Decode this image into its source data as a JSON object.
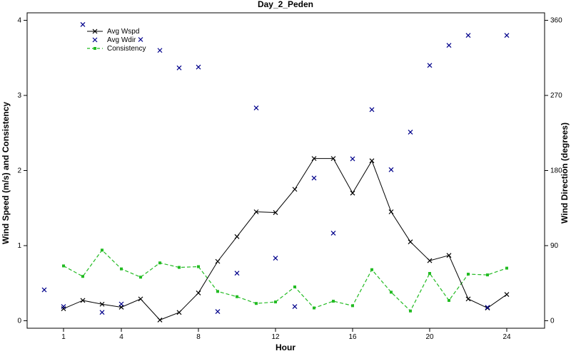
{
  "chart_data": {
    "type": "line",
    "title": "Day_2_Peden",
    "xlabel": "Hour",
    "ylabel": "Wind Speed (m/s) and Consistency",
    "ylabel_right": "Wind Direction (degrees)",
    "xlim": [
      0,
      25
    ],
    "ylim": [
      -0.1,
      4.1
    ],
    "ylim_right": [
      -9,
      369
    ],
    "x_ticks": [
      1,
      4,
      8,
      12,
      16,
      20,
      24
    ],
    "y_ticks": [
      0,
      1,
      2,
      3,
      4
    ],
    "y_ticks_right": [
      0,
      90,
      180,
      270,
      360
    ],
    "grid": false,
    "legend_position": "top-left",
    "series": [
      {
        "name": "Avg Wspd",
        "axis": "left",
        "style": "solid line with x markers",
        "color": "#000000",
        "x": [
          1,
          2,
          3,
          4,
          5,
          6,
          7,
          8,
          9,
          10,
          11,
          12,
          13,
          14,
          15,
          16,
          17,
          18,
          19,
          20,
          21,
          22,
          23,
          24
        ],
        "values": [
          0.16,
          0.27,
          0.22,
          0.18,
          0.29,
          0.01,
          0.11,
          0.37,
          0.79,
          1.12,
          1.45,
          1.44,
          1.75,
          2.16,
          2.16,
          1.7,
          2.13,
          1.45,
          1.05,
          0.8,
          0.87,
          0.29,
          0.17,
          0.35
        ]
      },
      {
        "name": "Avg Wdir",
        "axis": "right",
        "style": "x markers only",
        "color": "#00008b",
        "x": [
          0,
          1,
          2,
          3,
          4,
          5,
          6,
          7,
          8,
          9,
          10,
          11,
          12,
          13,
          14,
          15,
          16,
          17,
          18,
          19,
          20,
          21,
          22,
          23,
          24
        ],
        "values": [
          37,
          17,
          355,
          10,
          20,
          337,
          324,
          303,
          304,
          11,
          57,
          255,
          75,
          17,
          171,
          105,
          194,
          253,
          181,
          226,
          306,
          330,
          342,
          16,
          342
        ]
      },
      {
        "name": "Consistency",
        "axis": "left",
        "style": "dashed line with square markers",
        "color": "#22bb22",
        "x": [
          1,
          2,
          3,
          4,
          5,
          6,
          7,
          8,
          9,
          10,
          11,
          12,
          13,
          14,
          15,
          16,
          17,
          18,
          19,
          20,
          21,
          22,
          23,
          24
        ],
        "values": [
          0.73,
          0.59,
          0.94,
          0.69,
          0.58,
          0.77,
          0.71,
          0.72,
          0.39,
          0.32,
          0.23,
          0.25,
          0.45,
          0.17,
          0.26,
          0.2,
          0.68,
          0.38,
          0.13,
          0.63,
          0.27,
          0.62,
          0.61,
          0.7
        ]
      }
    ]
  }
}
